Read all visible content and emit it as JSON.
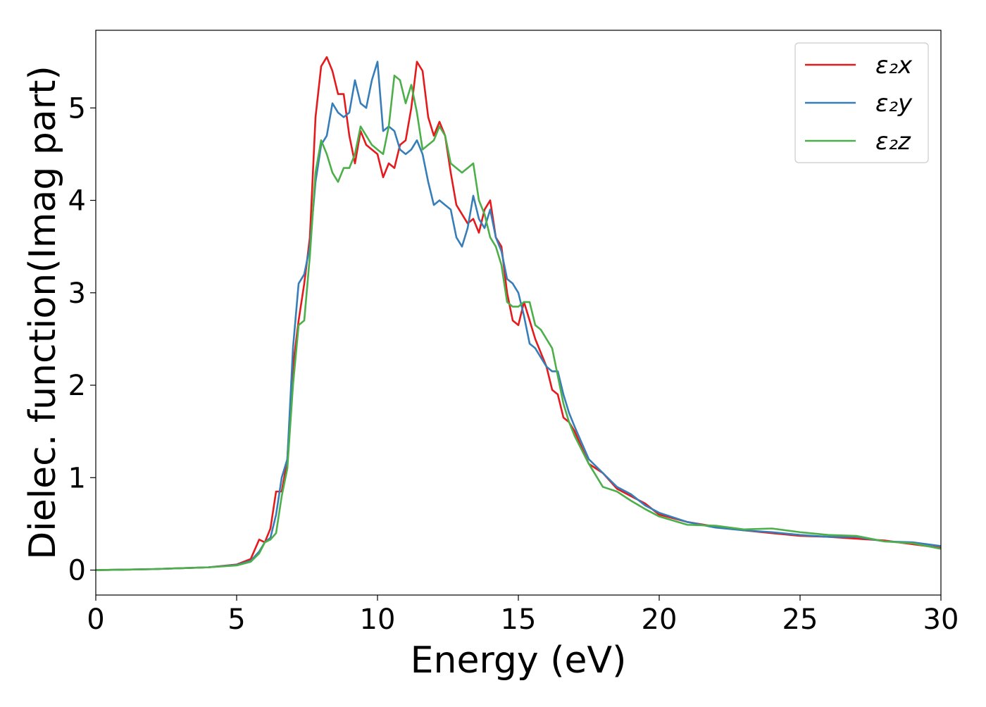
{
  "chart_data": {
    "type": "line",
    "xlabel": "Energy (eV)",
    "ylabel": "Dielec. function(Imag part)",
    "x": [
      0,
      1,
      2,
      3,
      4,
      5,
      5.5,
      5.8,
      6,
      6.2,
      6.4,
      6.6,
      6.8,
      7,
      7.2,
      7.4,
      7.6,
      7.8,
      8,
      8.2,
      8.4,
      8.6,
      8.8,
      9,
      9.2,
      9.4,
      9.6,
      9.8,
      10,
      10.2,
      10.4,
      10.6,
      10.8,
      11,
      11.2,
      11.4,
      11.6,
      11.8,
      12,
      12.2,
      12.4,
      12.6,
      12.8,
      13,
      13.2,
      13.4,
      13.6,
      13.8,
      14,
      14.2,
      14.4,
      14.6,
      14.8,
      15,
      15.2,
      15.4,
      15.6,
      15.8,
      16,
      16.2,
      16.4,
      16.6,
      16.8,
      17,
      17.5,
      18,
      18.5,
      19,
      19.5,
      20,
      21,
      22,
      23,
      24,
      25,
      26,
      27,
      28,
      29,
      30
    ],
    "series": [
      {
        "name": "ε₂x",
        "color": "#e41a1c",
        "values": [
          0,
          0.005,
          0.01,
          0.02,
          0.03,
          0.06,
          0.12,
          0.33,
          0.3,
          0.45,
          0.85,
          0.85,
          1.2,
          2.2,
          2.7,
          3.1,
          3.6,
          4.9,
          5.45,
          5.55,
          5.4,
          5.15,
          5.15,
          4.7,
          4.4,
          4.75,
          4.6,
          4.55,
          4.5,
          4.25,
          4.4,
          4.35,
          4.6,
          4.65,
          5.0,
          5.5,
          5.4,
          4.9,
          4.7,
          4.85,
          4.7,
          4.3,
          3.95,
          3.85,
          3.75,
          3.8,
          3.65,
          3.9,
          4.0,
          3.6,
          3.5,
          3.0,
          2.7,
          2.65,
          2.9,
          2.7,
          2.5,
          2.35,
          2.2,
          1.95,
          1.9,
          1.65,
          1.6,
          1.5,
          1.15,
          1.05,
          0.88,
          0.8,
          0.72,
          0.6,
          0.52,
          0.47,
          0.43,
          0.4,
          0.37,
          0.36,
          0.34,
          0.32,
          0.28,
          0.24
        ]
      },
      {
        "name": "ε₂y",
        "color": "#377eb8",
        "values": [
          0,
          0.005,
          0.01,
          0.02,
          0.03,
          0.055,
          0.1,
          0.2,
          0.3,
          0.35,
          0.6,
          1.0,
          1.2,
          2.4,
          3.1,
          3.2,
          3.5,
          4.2,
          4.6,
          4.7,
          5.05,
          4.95,
          4.9,
          4.95,
          5.3,
          5.05,
          5.0,
          5.3,
          5.5,
          4.75,
          4.8,
          4.75,
          4.55,
          4.5,
          4.55,
          4.65,
          4.5,
          4.2,
          3.95,
          4.0,
          3.95,
          3.9,
          3.6,
          3.5,
          3.7,
          4.05,
          3.8,
          3.7,
          3.9,
          3.6,
          3.45,
          3.15,
          3.1,
          3.0,
          2.75,
          2.45,
          2.4,
          2.3,
          2.2,
          2.15,
          2.15,
          1.9,
          1.7,
          1.55,
          1.2,
          1.05,
          0.9,
          0.82,
          0.7,
          0.62,
          0.52,
          0.46,
          0.43,
          0.41,
          0.38,
          0.36,
          0.36,
          0.31,
          0.3,
          0.26
        ]
      },
      {
        "name": "ε₂z",
        "color": "#4daf4a",
        "values": [
          0,
          0.005,
          0.01,
          0.02,
          0.03,
          0.05,
          0.09,
          0.18,
          0.3,
          0.33,
          0.4,
          0.8,
          1.1,
          2.0,
          2.65,
          2.7,
          3.4,
          4.3,
          4.65,
          4.5,
          4.3,
          4.2,
          4.35,
          4.35,
          4.5,
          4.8,
          4.7,
          4.6,
          4.55,
          4.5,
          4.8,
          5.35,
          5.3,
          5.05,
          5.25,
          4.95,
          4.55,
          4.6,
          4.65,
          4.8,
          4.7,
          4.4,
          4.35,
          4.3,
          4.35,
          4.4,
          4.0,
          3.85,
          3.6,
          3.5,
          3.3,
          2.9,
          2.85,
          2.85,
          2.9,
          2.9,
          2.65,
          2.6,
          2.5,
          2.4,
          2.1,
          1.8,
          1.6,
          1.45,
          1.15,
          0.9,
          0.85,
          0.75,
          0.66,
          0.58,
          0.49,
          0.48,
          0.44,
          0.45,
          0.41,
          0.38,
          0.37,
          0.31,
          0.29,
          0.23
        ]
      }
    ],
    "xlim": [
      0,
      30
    ],
    "ylim": [
      -0.27,
      5.84
    ],
    "xticks": [
      0,
      5,
      10,
      15,
      20,
      25,
      30
    ],
    "yticks": [
      0,
      1,
      2,
      3,
      4,
      5
    ],
    "grid": false,
    "legend": "upper right"
  }
}
